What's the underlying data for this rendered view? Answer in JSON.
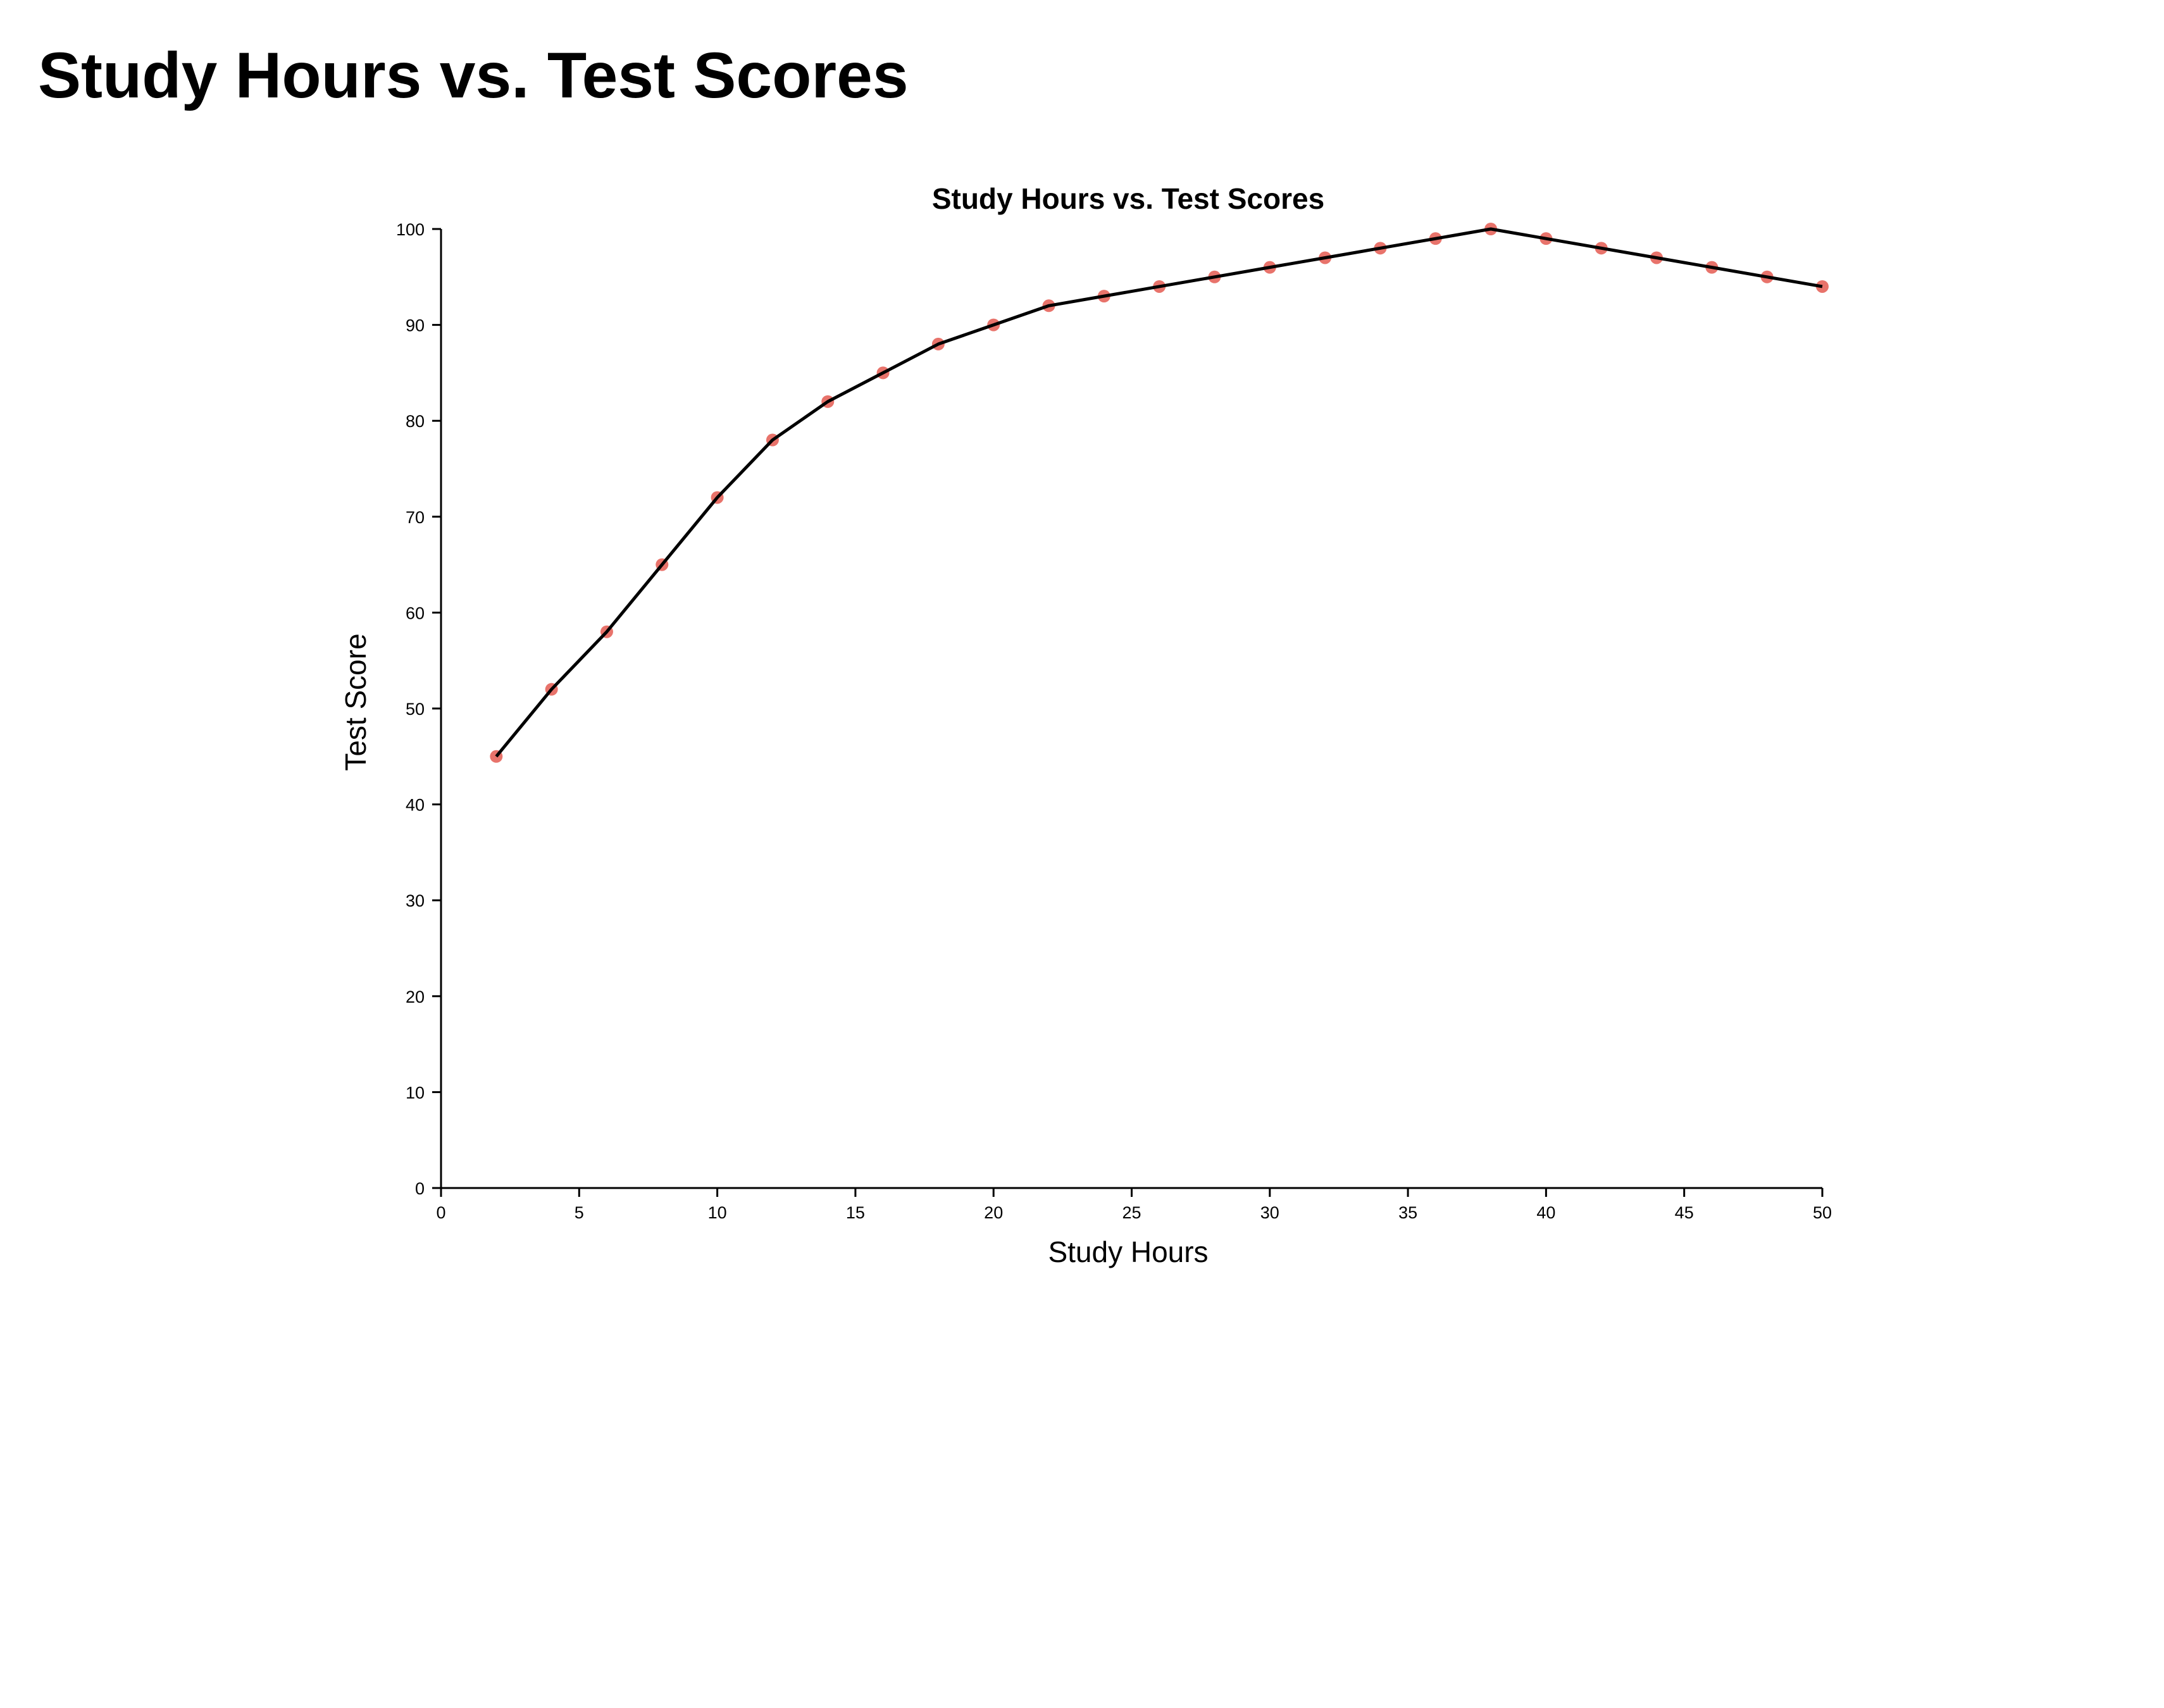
{
  "page": {
    "heading": "Study Hours vs. Test Scores"
  },
  "chart_data": {
    "type": "line",
    "title": "Study Hours vs. Test Scores",
    "xlabel": "Study Hours",
    "ylabel": "Test Score",
    "xlim": [
      0,
      50
    ],
    "ylim": [
      0,
      100
    ],
    "xticks": [
      0,
      5,
      10,
      15,
      20,
      25,
      30,
      35,
      40,
      45,
      50
    ],
    "yticks": [
      0,
      10,
      20,
      30,
      40,
      50,
      60,
      70,
      80,
      90,
      100
    ],
    "grid": false,
    "legend": "none",
    "colors": {
      "line": "#000000",
      "points": "#e8736b"
    },
    "series": [
      {
        "x": [
          2,
          4,
          6,
          8,
          10,
          12,
          14,
          16,
          18,
          20,
          22,
          24,
          26,
          28,
          30,
          32,
          34,
          36,
          38,
          40,
          42,
          44,
          46,
          48,
          50
        ],
        "y": [
          45,
          52,
          58,
          65,
          72,
          78,
          82,
          85,
          88,
          90,
          92,
          93,
          94,
          95,
          96,
          97,
          98,
          99,
          100,
          99,
          98,
          97,
          96,
          95,
          94
        ]
      }
    ]
  }
}
